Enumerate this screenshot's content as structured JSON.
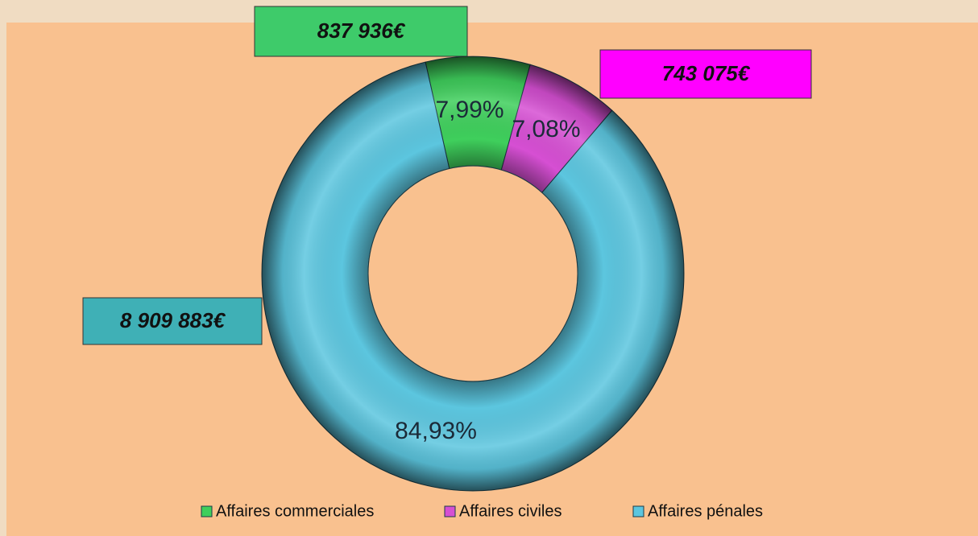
{
  "chart_data": {
    "type": "donut",
    "categories": [
      "Affaires commerciales",
      "Affaires civiles",
      "Affaires pénales"
    ],
    "values": [
      7.99,
      7.08,
      84.93
    ],
    "value_labels": [
      "7,99%",
      "7,08%",
      "84,93%"
    ],
    "colors": [
      "#3fcf5c",
      "#d64fd3",
      "#5cc6df"
    ],
    "annotations": [
      "837 936€",
      "743 075€",
      "8 909 883€"
    ],
    "annotation_colors": [
      "#3ecb6a",
      "#ff00ff",
      "#3fb0b6"
    ],
    "legend": "bottom"
  }
}
